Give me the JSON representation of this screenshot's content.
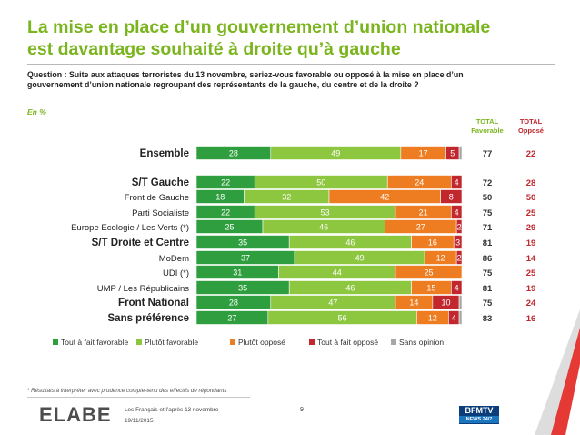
{
  "title_line1": "La mise en place d’un gouvernement d’union nationale",
  "title_line2": "est davantage souhaité à droite qu’à gauche",
  "question": "Question : Suite aux attaques terroristes du 13 novembre, seriez-vous favorable ou opposé à la mise en place d’un gouvernement d’union nationale regroupant des représentants de la gauche, du centre et de la droite ?",
  "unit": "En %",
  "col_favorable": [
    "TOTAL",
    "Favorable"
  ],
  "col_oppose": [
    "TOTAL",
    "Opposé"
  ],
  "footnote": "* Résultats à interpréter avec prudence compte-tenu des effectifs de répondants",
  "brand": "ELABE",
  "meta_line1": "Les Français et l’après 13 novembre",
  "meta_line2": "19/11/2015",
  "page_number": "9",
  "badge_top": "BFMTV",
  "badge_bottom": "NEWS 24/7",
  "colors": {
    "tres_favorable": "#2e9e3e",
    "plutot_favorable": "#8dc63f",
    "plutot_oppose": "#ee7d22",
    "tres_oppose": "#c1272d",
    "sans_opinion": "#a6a6a6",
    "accent": "#7ab51d",
    "opposed_total": "#c1272d"
  },
  "chart_data": {
    "type": "bar",
    "orientation": "horizontal",
    "stacked": true,
    "xlim": [
      0,
      100
    ],
    "categories": [
      "Ensemble",
      "S/T Gauche",
      "Front de Gauche",
      "Parti Socialiste",
      "Europe Ecologie / Les Verts (*)",
      "S/T Droite et Centre",
      "MoDem",
      "UDI (*)",
      "UMP / Les Républicains",
      "Front National",
      "Sans préférence"
    ],
    "emphasis": [
      true,
      true,
      false,
      false,
      false,
      true,
      false,
      false,
      false,
      true,
      true
    ],
    "series": [
      {
        "name": "Tout à fait favorable",
        "values": [
          28,
          22,
          18,
          22,
          25,
          35,
          37,
          31,
          35,
          28,
          27
        ]
      },
      {
        "name": "Plutôt favorable",
        "values": [
          49,
          50,
          32,
          53,
          46,
          46,
          49,
          44,
          46,
          47,
          56
        ]
      },
      {
        "name": "Plutôt opposé",
        "values": [
          17,
          24,
          42,
          21,
          27,
          16,
          12,
          25,
          15,
          14,
          12
        ]
      },
      {
        "name": "Tout à fait opposé",
        "values": [
          5,
          4,
          8,
          4,
          2,
          3,
          2,
          0,
          4,
          10,
          4
        ]
      },
      {
        "name": "Sans opinion",
        "values": [
          1,
          0,
          0,
          0,
          0,
          0,
          0,
          0,
          0,
          1,
          1
        ]
      }
    ],
    "total_favorable": [
      77,
      72,
      50,
      75,
      71,
      81,
      86,
      75,
      81,
      75,
      83
    ],
    "total_oppose": [
      22,
      28,
      50,
      25,
      29,
      19,
      14,
      25,
      19,
      24,
      16
    ],
    "legend_position": "bottom"
  }
}
